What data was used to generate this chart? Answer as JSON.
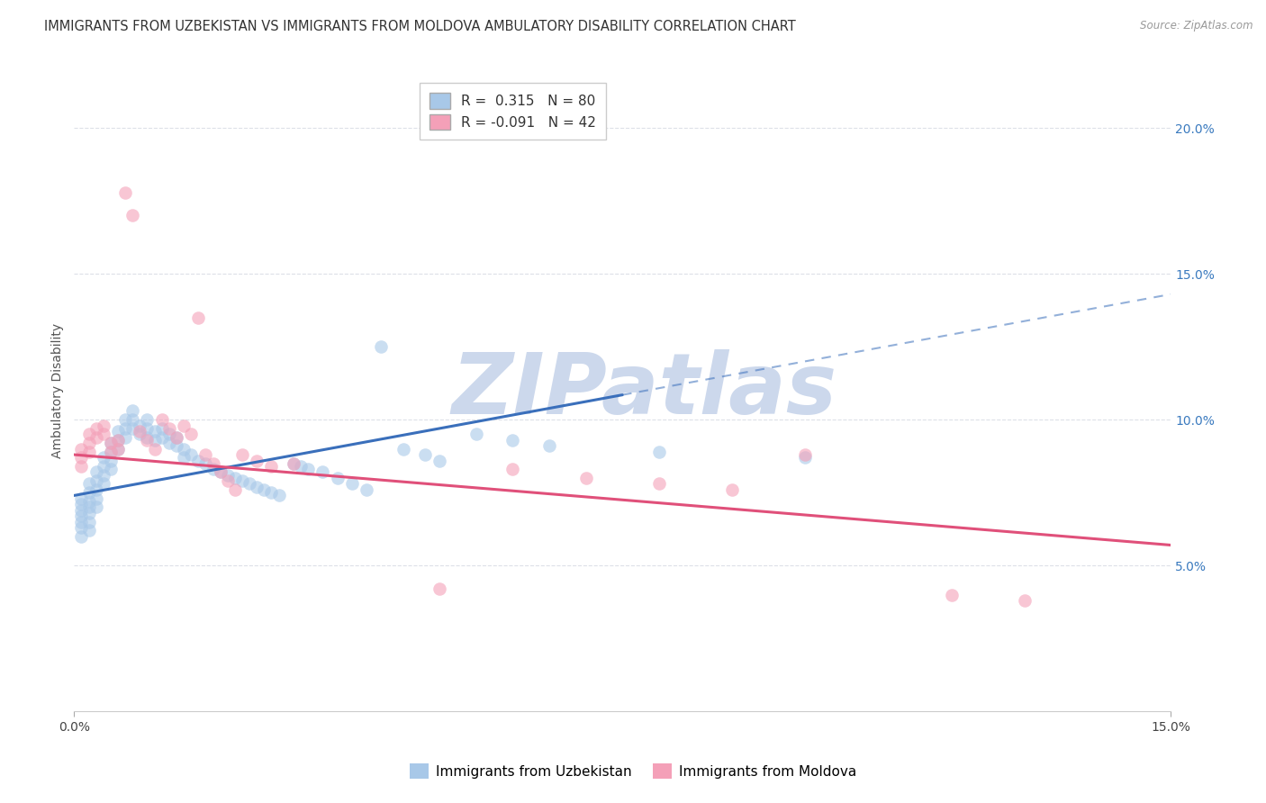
{
  "title": "IMMIGRANTS FROM UZBEKISTAN VS IMMIGRANTS FROM MOLDOVA AMBULATORY DISABILITY CORRELATION CHART",
  "source": "Source: ZipAtlas.com",
  "ylabel": "Ambulatory Disability",
  "x_min": 0.0,
  "x_max": 0.15,
  "y_min": 0.0,
  "y_max": 0.22,
  "x_tick_positions": [
    0.0,
    0.15
  ],
  "x_tick_labels": [
    "0.0%",
    "15.0%"
  ],
  "y_ticks_right": [
    0.05,
    0.1,
    0.15,
    0.2
  ],
  "y_tick_labels_right": [
    "5.0%",
    "10.0%",
    "15.0%",
    "20.0%"
  ],
  "series_uzbekistan": {
    "color": "#a8c8e8",
    "x": [
      0.001,
      0.001,
      0.001,
      0.001,
      0.001,
      0.001,
      0.001,
      0.002,
      0.002,
      0.002,
      0.002,
      0.002,
      0.002,
      0.002,
      0.003,
      0.003,
      0.003,
      0.003,
      0.003,
      0.004,
      0.004,
      0.004,
      0.004,
      0.005,
      0.005,
      0.005,
      0.005,
      0.006,
      0.006,
      0.006,
      0.007,
      0.007,
      0.007,
      0.008,
      0.008,
      0.008,
      0.009,
      0.009,
      0.01,
      0.01,
      0.01,
      0.011,
      0.011,
      0.012,
      0.012,
      0.013,
      0.013,
      0.014,
      0.014,
      0.015,
      0.015,
      0.016,
      0.017,
      0.018,
      0.019,
      0.02,
      0.021,
      0.022,
      0.023,
      0.024,
      0.025,
      0.026,
      0.027,
      0.028,
      0.03,
      0.031,
      0.032,
      0.034,
      0.036,
      0.038,
      0.04,
      0.042,
      0.045,
      0.048,
      0.05,
      0.055,
      0.06,
      0.065,
      0.08,
      0.1
    ],
    "y": [
      0.073,
      0.071,
      0.069,
      0.067,
      0.065,
      0.063,
      0.06,
      0.078,
      0.075,
      0.072,
      0.07,
      0.068,
      0.065,
      0.062,
      0.082,
      0.079,
      0.076,
      0.073,
      0.07,
      0.087,
      0.084,
      0.081,
      0.078,
      0.092,
      0.089,
      0.086,
      0.083,
      0.096,
      0.093,
      0.09,
      0.1,
      0.097,
      0.094,
      0.103,
      0.1,
      0.097,
      0.098,
      0.095,
      0.1,
      0.097,
      0.094,
      0.096,
      0.093,
      0.097,
      0.094,
      0.095,
      0.092,
      0.094,
      0.091,
      0.09,
      0.087,
      0.088,
      0.086,
      0.085,
      0.083,
      0.082,
      0.081,
      0.08,
      0.079,
      0.078,
      0.077,
      0.076,
      0.075,
      0.074,
      0.085,
      0.084,
      0.083,
      0.082,
      0.08,
      0.078,
      0.076,
      0.125,
      0.09,
      0.088,
      0.086,
      0.095,
      0.093,
      0.091,
      0.089,
      0.087
    ]
  },
  "series_moldova": {
    "color": "#f4a0b8",
    "x": [
      0.001,
      0.001,
      0.001,
      0.002,
      0.002,
      0.002,
      0.003,
      0.003,
      0.004,
      0.004,
      0.005,
      0.005,
      0.006,
      0.006,
      0.007,
      0.008,
      0.009,
      0.01,
      0.011,
      0.012,
      0.013,
      0.014,
      0.015,
      0.016,
      0.017,
      0.018,
      0.019,
      0.02,
      0.021,
      0.022,
      0.023,
      0.025,
      0.027,
      0.03,
      0.05,
      0.06,
      0.07,
      0.08,
      0.09,
      0.1,
      0.12,
      0.13
    ],
    "y": [
      0.09,
      0.087,
      0.084,
      0.095,
      0.092,
      0.089,
      0.097,
      0.094,
      0.098,
      0.095,
      0.092,
      0.089,
      0.093,
      0.09,
      0.178,
      0.17,
      0.096,
      0.093,
      0.09,
      0.1,
      0.097,
      0.094,
      0.098,
      0.095,
      0.135,
      0.088,
      0.085,
      0.082,
      0.079,
      0.076,
      0.088,
      0.086,
      0.084,
      0.085,
      0.042,
      0.083,
      0.08,
      0.078,
      0.076,
      0.088,
      0.04,
      0.038
    ]
  },
  "trend_uzbekistan": {
    "x_start": 0.0,
    "x_end": 0.15,
    "y_start": 0.074,
    "y_end": 0.143,
    "color": "#3a6fbb",
    "solid_end_x": 0.075
  },
  "trend_moldova": {
    "x_start": 0.0,
    "x_end": 0.15,
    "y_start": 0.088,
    "y_end": 0.057,
    "color": "#e0507a"
  },
  "watermark": "ZIPatlas",
  "watermark_color": "#ccd8ec",
  "background_color": "#ffffff",
  "grid_color": "#dde0e8",
  "title_fontsize": 10.5,
  "axis_label_fontsize": 10,
  "tick_fontsize": 10,
  "right_tick_color": "#3a7abf"
}
